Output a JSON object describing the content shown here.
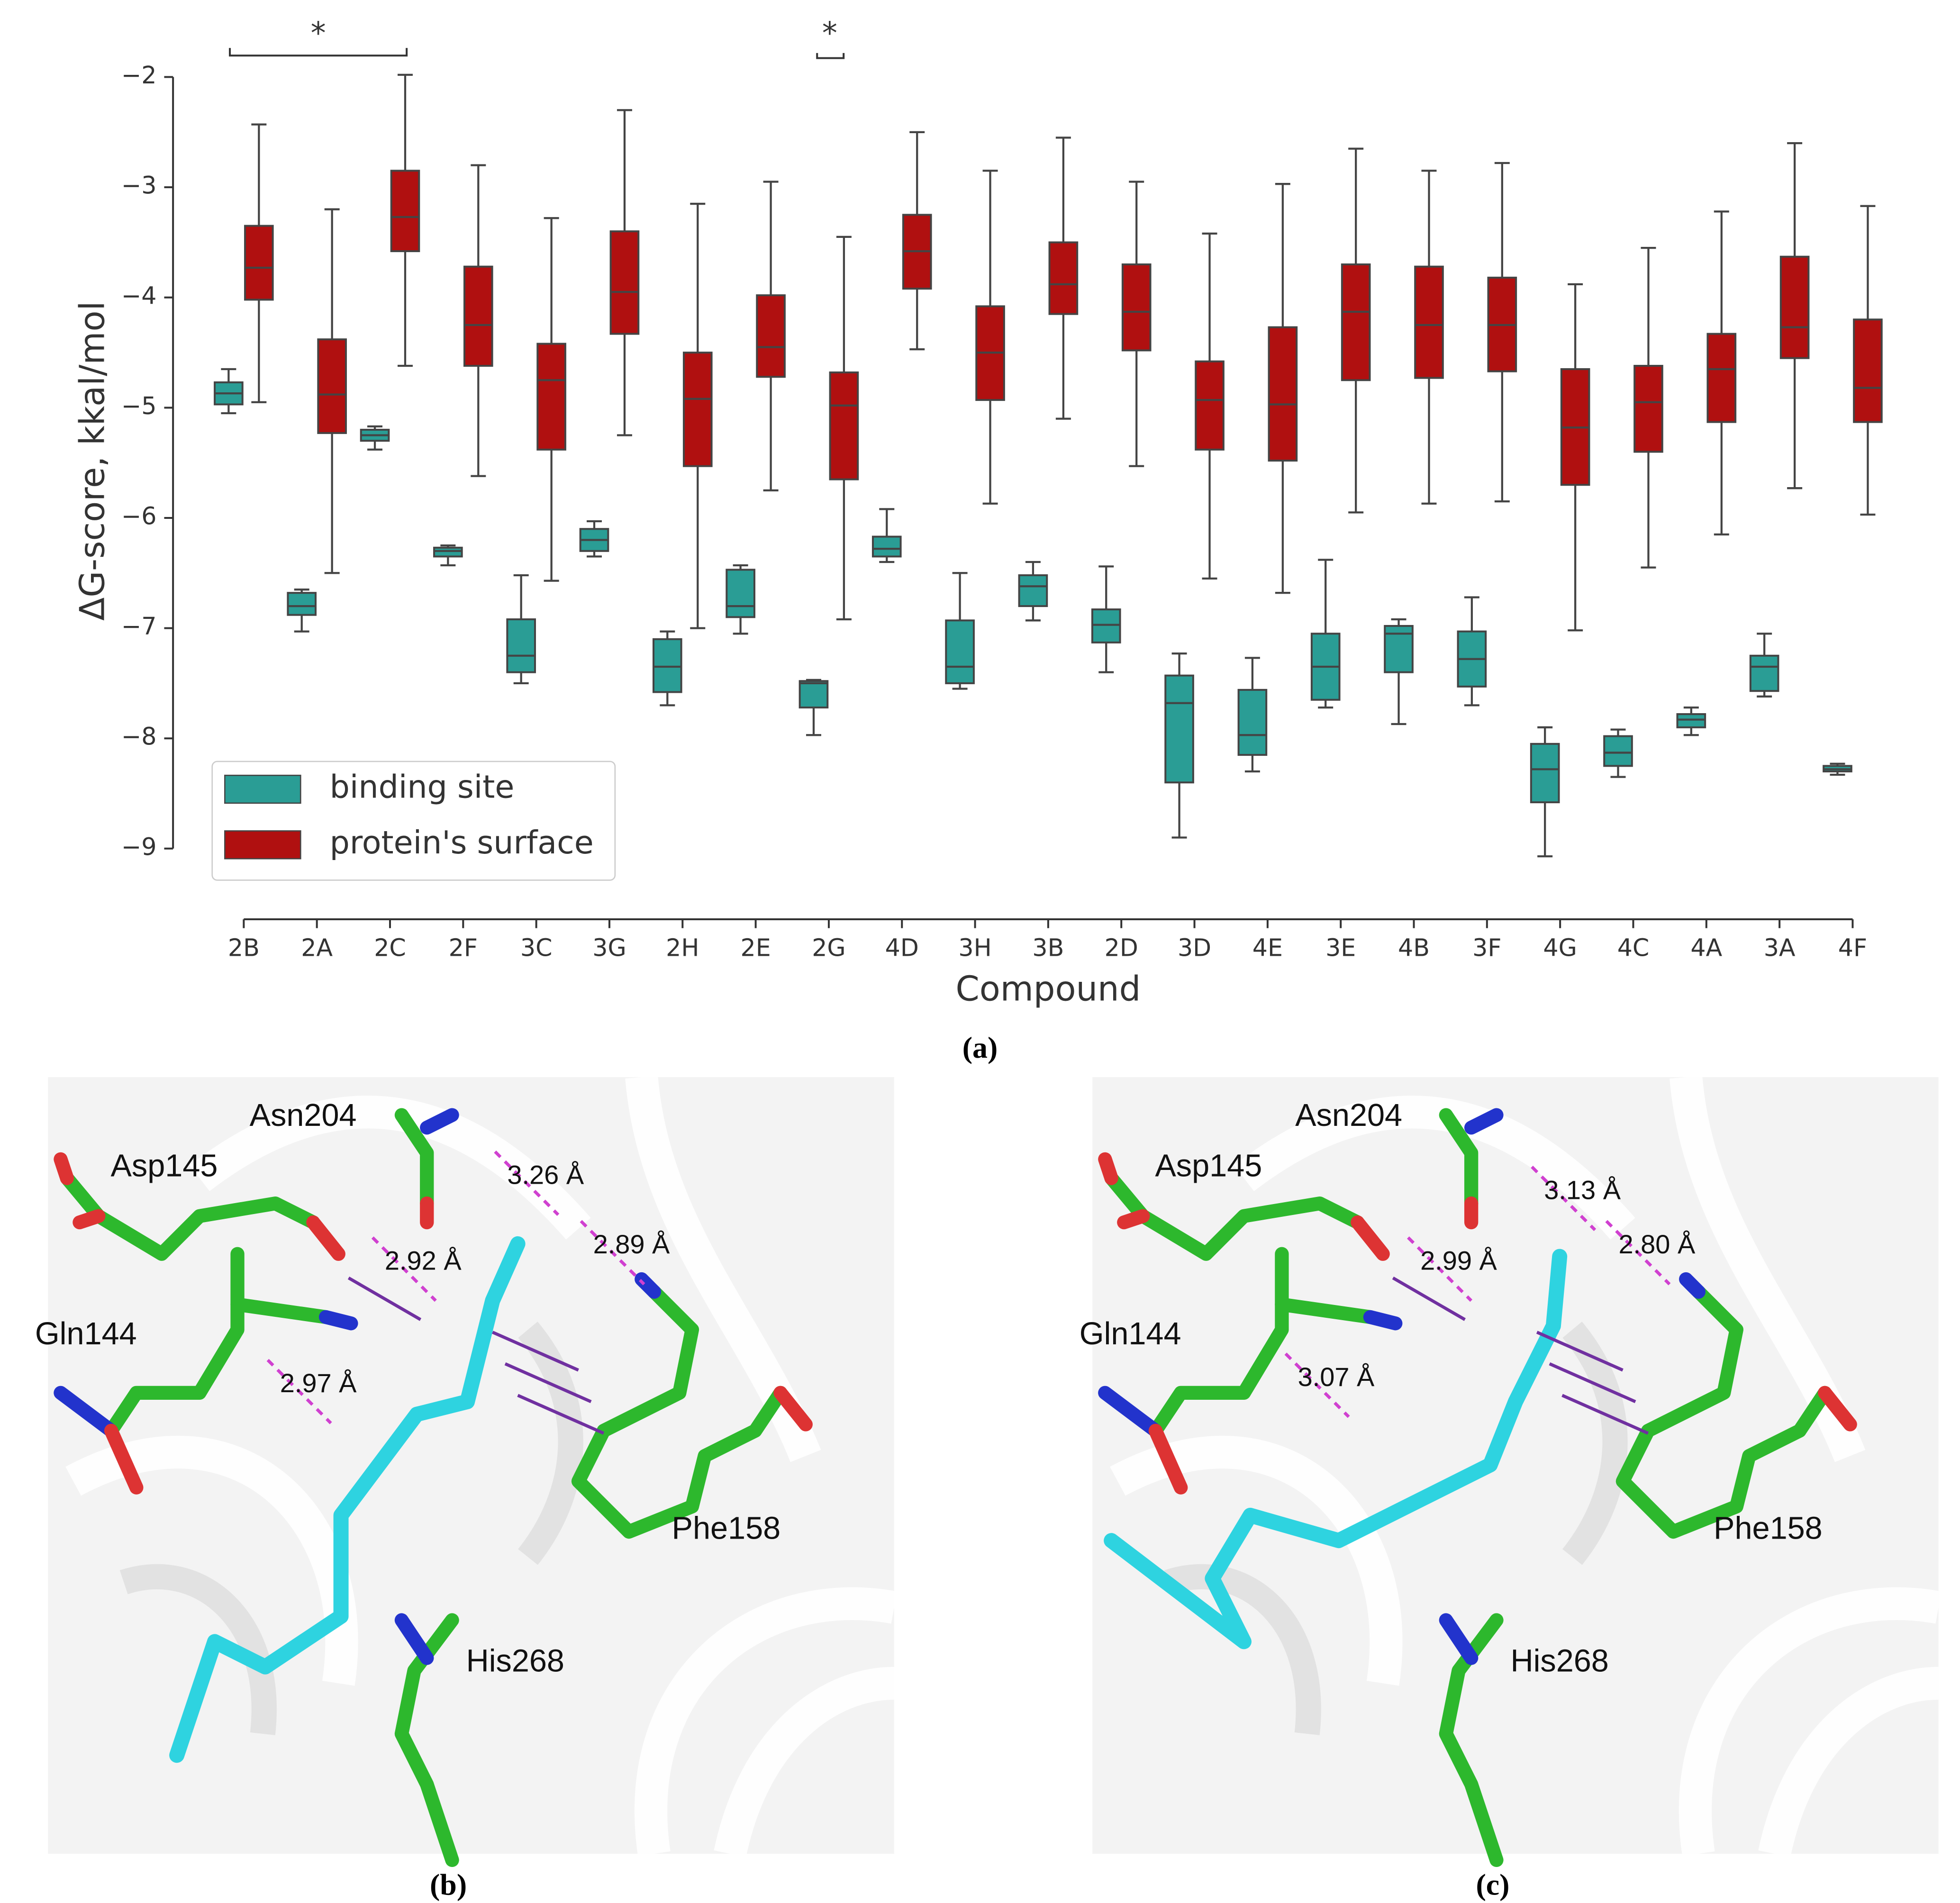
{
  "chart_data": {
    "type": "box",
    "ylabel": "ΔG-score, kkal/mol",
    "xlabel": "Compound",
    "panel_label": "(a)",
    "categories": [
      "2B",
      "2A",
      "2C",
      "2F",
      "3C",
      "3G",
      "2H",
      "2E",
      "2G",
      "4D",
      "3H",
      "3B",
      "2D",
      "3D",
      "4E",
      "3E",
      "4B",
      "3F",
      "4G",
      "4C",
      "4A",
      "3A",
      "4F"
    ],
    "ylim": [
      -9,
      -2
    ],
    "yticks": [
      {
        "value": -2,
        "label": "−2"
      },
      {
        "value": -3,
        "label": "−3"
      },
      {
        "value": -4,
        "label": "−4"
      },
      {
        "value": -5,
        "label": "−5"
      },
      {
        "value": -6,
        "label": "−6"
      },
      {
        "value": -7,
        "label": "−7"
      },
      {
        "value": -8,
        "label": "−8"
      },
      {
        "value": -9,
        "label": "−9"
      }
    ],
    "legend": "lower left",
    "annotations": [
      "*",
      "*"
    ],
    "series": [
      {
        "name": "binding site",
        "color": "#2a9d95",
        "min": [
          -5.05,
          -7.03,
          -5.38,
          -6.43,
          -7.5,
          -6.35,
          -7.7,
          -7.05,
          -7.97,
          -6.4,
          -7.55,
          -6.93,
          -7.4,
          -8.9,
          -8.3,
          -7.72,
          -7.87,
          -7.7,
          -9.07,
          -8.35,
          -7.97,
          -7.62,
          -8.33
        ],
        "q1": [
          -4.97,
          -6.88,
          -5.3,
          -6.35,
          -7.4,
          -6.3,
          -7.58,
          -6.9,
          -7.72,
          -6.35,
          -7.5,
          -6.8,
          -7.13,
          -8.4,
          -8.15,
          -7.65,
          -7.4,
          -7.53,
          -8.58,
          -8.25,
          -7.9,
          -7.57,
          -8.3
        ],
        "median": [
          -4.87,
          -6.8,
          -5.25,
          -6.3,
          -7.25,
          -6.2,
          -7.35,
          -6.8,
          -7.5,
          -6.28,
          -7.35,
          -6.62,
          -6.97,
          -7.68,
          -7.97,
          -7.35,
          -7.05,
          -7.28,
          -8.28,
          -8.13,
          -7.83,
          -7.35,
          -8.28
        ],
        "q3": [
          -4.77,
          -6.68,
          -5.2,
          -6.27,
          -6.92,
          -6.1,
          -7.1,
          -6.47,
          -7.48,
          -6.17,
          -6.93,
          -6.52,
          -6.83,
          -7.43,
          -7.56,
          -7.05,
          -6.98,
          -7.03,
          -8.05,
          -7.98,
          -7.78,
          -7.25,
          -8.25
        ],
        "max": [
          -4.65,
          -6.65,
          -5.17,
          -6.25,
          -6.52,
          -6.03,
          -7.03,
          -6.43,
          -7.47,
          -5.92,
          -6.5,
          -6.4,
          -6.44,
          -7.23,
          -7.27,
          -6.38,
          -6.92,
          -6.72,
          -7.9,
          -7.92,
          -7.72,
          -7.05,
          -8.23
        ]
      },
      {
        "name": "protein's surface",
        "color": "#b01010",
        "min": [
          -4.95,
          -6.5,
          -4.62,
          -5.62,
          -6.57,
          -5.25,
          -7.0,
          -5.75,
          -6.92,
          -4.47,
          -5.87,
          -5.1,
          -5.53,
          -6.55,
          -6.68,
          -5.95,
          -5.87,
          -5.85,
          -7.02,
          -6.45,
          -6.15,
          -5.73,
          -5.97
        ],
        "q1": [
          -4.02,
          -5.23,
          -3.58,
          -4.62,
          -5.38,
          -4.33,
          -5.53,
          -4.72,
          -5.65,
          -3.92,
          -4.93,
          -4.15,
          -4.48,
          -5.38,
          -5.48,
          -4.75,
          -4.73,
          -4.67,
          -5.7,
          -5.4,
          -5.13,
          -4.55,
          -5.13
        ],
        "median": [
          -3.73,
          -4.88,
          -3.27,
          -4.25,
          -4.75,
          -3.95,
          -4.92,
          -4.45,
          -4.98,
          -3.58,
          -4.5,
          -3.88,
          -4.13,
          -4.93,
          -4.97,
          -4.13,
          -4.25,
          -4.25,
          -5.18,
          -4.95,
          -4.65,
          -4.27,
          -4.82
        ],
        "q3": [
          -3.35,
          -4.38,
          -2.85,
          -3.72,
          -4.42,
          -3.4,
          -4.5,
          -3.98,
          -4.68,
          -3.25,
          -4.08,
          -3.5,
          -3.7,
          -4.58,
          -4.27,
          -3.7,
          -3.72,
          -3.82,
          -4.65,
          -4.62,
          -4.33,
          -3.63,
          -4.2
        ],
        "max": [
          -2.43,
          -3.2,
          -1.98,
          -2.8,
          -3.28,
          -2.3,
          -3.15,
          -2.95,
          -3.45,
          -2.5,
          -2.85,
          -2.55,
          -2.95,
          -3.42,
          -2.97,
          -2.65,
          -2.85,
          -2.78,
          -3.88,
          -3.55,
          -3.22,
          -2.6,
          -3.17
        ]
      }
    ]
  },
  "panels": [
    {
      "label": "(b)",
      "residues": [
        "Asn204",
        "Asp145",
        "Gln144",
        "Phe158",
        "His268"
      ],
      "distances": [
        "3.26 Å",
        "2.92 Å",
        "2.89 Å",
        "2.97 Å"
      ]
    },
    {
      "label": "(c)",
      "residues": [
        "Asn204",
        "Asp145",
        "Gln144",
        "Phe158",
        "His268"
      ],
      "distances": [
        "3.13 Å",
        "2.99 Å",
        "2.80 Å",
        "3.07 Å"
      ]
    }
  ]
}
